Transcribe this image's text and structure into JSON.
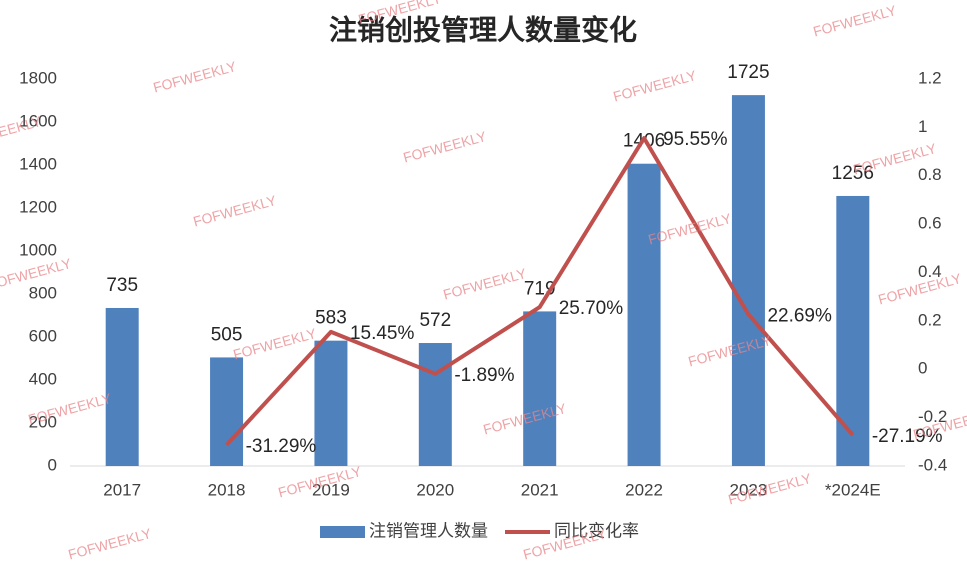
{
  "chart_data": {
    "type": "bar",
    "title": "注销创投管理人数量变化",
    "watermark": "FOFWEEKLY",
    "categories": [
      "2017",
      "2018",
      "2019",
      "2020",
      "2021",
      "2022",
      "2023",
      "*2024E"
    ],
    "series": [
      {
        "name": "注销管理人数量",
        "color": "#4f81bd",
        "values": [
          735,
          505,
          583,
          572,
          719,
          1406,
          1725,
          1256
        ]
      },
      {
        "name": "同比变化率",
        "color": "#c0504d",
        "type": "line",
        "axis": "y2",
        "values": [
          null,
          -0.3129,
          0.1545,
          -0.0189,
          0.257,
          0.9555,
          0.2269,
          -0.2719
        ],
        "value_labels": [
          null,
          "-31.29%",
          "15.45%",
          "-1.89%",
          "25.70%",
          "95.55%",
          "22.69%",
          "-27.19%"
        ]
      }
    ],
    "ylim": [
      0,
      1800
    ],
    "yticks": [
      0,
      200,
      400,
      600,
      800,
      1000,
      1200,
      1400,
      1600,
      1800
    ],
    "y2lim": [
      -0.4,
      1.2
    ],
    "y2ticks": [
      -0.4,
      -0.2,
      0,
      0.2,
      0.4,
      0.6,
      0.8,
      1,
      1.2
    ],
    "legend": "bottom"
  }
}
